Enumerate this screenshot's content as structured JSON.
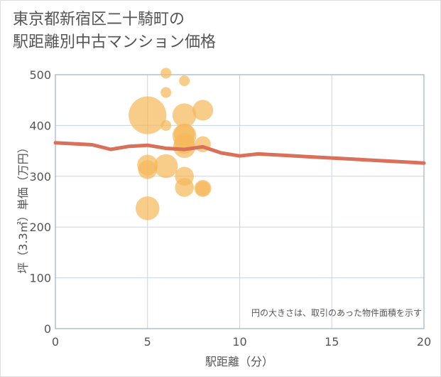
{
  "title": {
    "line1": "東京都新宿区二十騎町の",
    "line2": "駅距離別中古マンション価格"
  },
  "colors": {
    "bubble": "#f5b95c",
    "line": "#d9705a",
    "grid": "#c5d5e5",
    "plot_border": "#8aa0b8"
  },
  "chart_data": {
    "type": "scatter",
    "title": "東京都新宿区二十騎町の駅距離別中古マンション価格",
    "xlabel": "駅距離（分）",
    "ylabel": "坪（3.3㎡）単価（万円）",
    "xlim": [
      0,
      20
    ],
    "ylim": [
      0,
      500
    ],
    "xticks": [
      0,
      5,
      10,
      15,
      20
    ],
    "yticks": [
      0,
      100,
      200,
      300,
      400,
      500
    ],
    "grid": true,
    "note": "円の大きさは、取引のあった物件面積を示す",
    "bubbles": [
      {
        "x": 5,
        "y": 420,
        "size": 10
      },
      {
        "x": 5,
        "y": 322,
        "size": 3
      },
      {
        "x": 5,
        "y": 313,
        "size": 2.5
      },
      {
        "x": 5,
        "y": 237,
        "size": 4
      },
      {
        "x": 6,
        "y": 503,
        "size": 0.8
      },
      {
        "x": 6,
        "y": 465,
        "size": 0.8
      },
      {
        "x": 6,
        "y": 400,
        "size": 0.8
      },
      {
        "x": 6,
        "y": 320,
        "size": 4
      },
      {
        "x": 7,
        "y": 488,
        "size": 0.8
      },
      {
        "x": 7,
        "y": 420,
        "size": 4
      },
      {
        "x": 7,
        "y": 383,
        "size": 3
      },
      {
        "x": 7,
        "y": 380,
        "size": 4
      },
      {
        "x": 7,
        "y": 365,
        "size": 3
      },
      {
        "x": 7,
        "y": 358,
        "size": 3.5
      },
      {
        "x": 7,
        "y": 300,
        "size": 2.5
      },
      {
        "x": 7,
        "y": 278,
        "size": 2.5
      },
      {
        "x": 8,
        "y": 430,
        "size": 3
      },
      {
        "x": 8,
        "y": 363,
        "size": 1.8
      },
      {
        "x": 8,
        "y": 276,
        "size": 2
      },
      {
        "x": 8,
        "y": 276,
        "size": 1.5
      }
    ],
    "series": [
      {
        "name": "trend",
        "x": [
          0,
          1,
          2,
          3,
          4,
          5,
          6,
          7,
          8,
          9,
          10,
          11,
          12,
          13,
          14,
          15,
          16,
          17,
          18,
          19,
          20
        ],
        "values": [
          366,
          364,
          362,
          353,
          359,
          361,
          355,
          353,
          358,
          346,
          340,
          344,
          342,
          340,
          338,
          336,
          334,
          332,
          330,
          328,
          326
        ]
      }
    ]
  }
}
